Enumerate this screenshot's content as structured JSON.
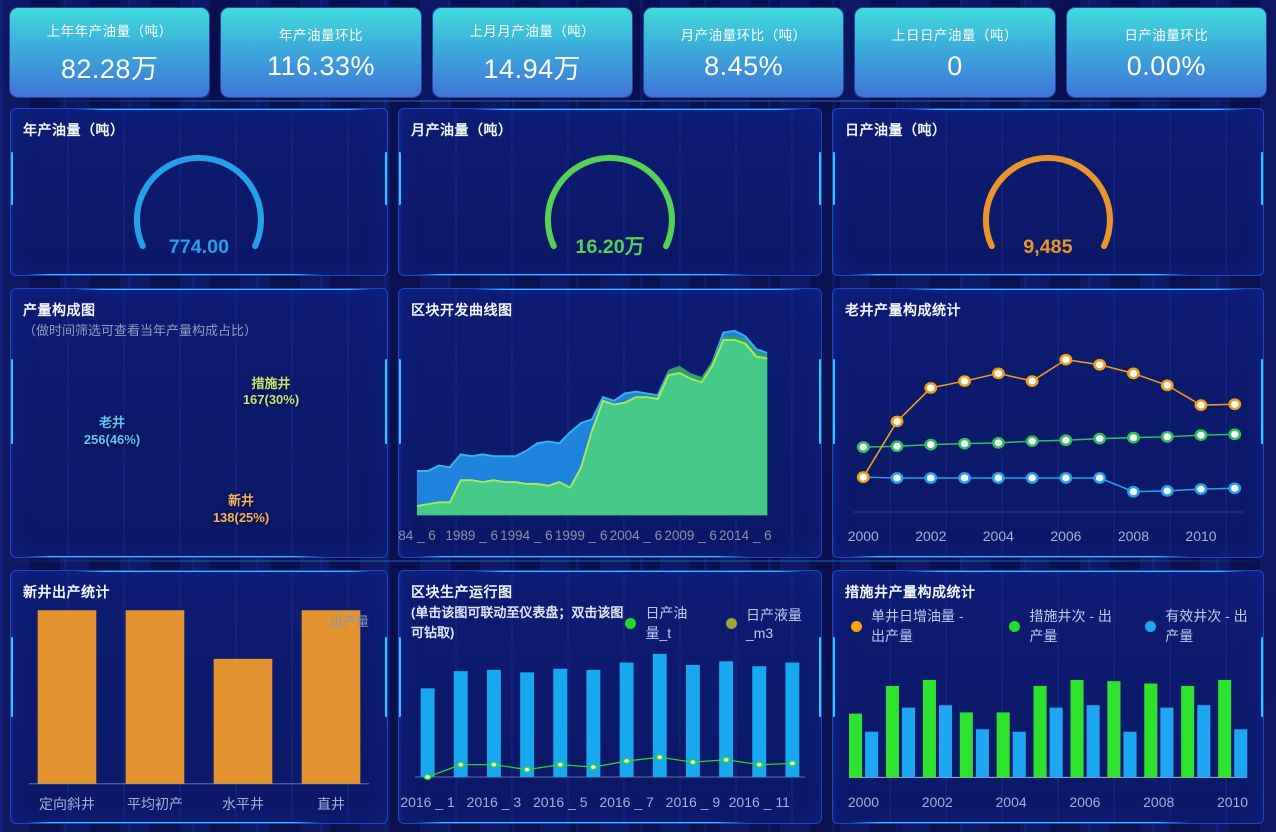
{
  "accent_colors": {
    "panel_border": "#1c49c0",
    "panel_glow": "#2fc3ff",
    "kpi_top": "#40dbda",
    "kpi_bottom": "#3e74d8"
  },
  "kpis": [
    {
      "label": "上年年产油量（吨）",
      "value": "82.28万"
    },
    {
      "label": "年产油量环比",
      "value": "116.33%"
    },
    {
      "label": "上月月产油量（吨）",
      "value": "14.94万"
    },
    {
      "label": "月产油量环比（吨）",
      "value": "8.45%"
    },
    {
      "label": "上日日产油量（吨）",
      "value": "0"
    },
    {
      "label": "日产油量环比",
      "value": "0.00%"
    }
  ],
  "panels": {
    "year_gauge": {
      "title": "年产油量（吨）"
    },
    "month_gauge": {
      "title": "月产油量（吨）"
    },
    "day_gauge": {
      "title": "日产油量（吨）"
    },
    "composition": {
      "title": "产量构成图",
      "subtitle": "（做时间筛选可查看当年产量构成占比）"
    },
    "block_curve": {
      "title": "区块开发曲线图"
    },
    "oldwell": {
      "title": "老井产量构成统计"
    },
    "newwell": {
      "title": "新井出产统计",
      "legend": "出产量"
    },
    "block_run": {
      "title": "区块生产运行图",
      "subtitle": "(单击该图可联动至仪表盘；双击该图可钻取)",
      "legend": [
        {
          "label": "日产油量_t",
          "color": "#2bd62b"
        },
        {
          "label": "日产液量_m3",
          "color": "#9aa53a"
        }
      ]
    },
    "measures": {
      "title": "措施井产量构成统计",
      "legend": [
        {
          "label": "单井日增油量 - 出产量",
          "color": "#f5a60a"
        },
        {
          "label": "措施井次 - 出产量",
          "color": "#22dd22"
        },
        {
          "label": "有效井次 - 出产量",
          "color": "#1fa6f2"
        }
      ]
    }
  },
  "chart_data": [
    {
      "id": "year-gauge",
      "type": "gauge",
      "title": "年产油量（吨）",
      "value": "774.00",
      "color": "#259fe6"
    },
    {
      "id": "month-gauge",
      "type": "gauge",
      "title": "月产油量（吨）",
      "value": "16.20万",
      "color": "#55d155"
    },
    {
      "id": "day-gauge",
      "type": "gauge",
      "title": "日产油量（吨）",
      "value": "9,485",
      "color": "#e8952e"
    },
    {
      "id": "composition-donut",
      "type": "pie",
      "title": "产量构成图",
      "slices": [
        {
          "label": "措施井",
          "text": "167(30%)",
          "value": 167,
          "pct": 30,
          "color": "#8ab43f",
          "label_color": "#c6e37a"
        },
        {
          "label": "新井",
          "text": "138(25%)",
          "value": 138,
          "pct": 25,
          "color": "#e0882a",
          "label_color": "#f2b25e"
        },
        {
          "label": "老井",
          "text": "256(46%)",
          "value": 256,
          "pct": 46,
          "color": "#29a3e6",
          "label_color": "#5ec6f5"
        }
      ]
    },
    {
      "id": "block-curve",
      "type": "area",
      "title": "区块开发曲线图",
      "x_labels": [
        "84 _ 6",
        "1989 _ 6",
        "1994 _ 6",
        "1999 _ 6",
        "2004 _ 6",
        "2009 _ 6",
        "2014 _ 6"
      ],
      "label_step": 5,
      "ylim": [
        0,
        100
      ],
      "grid": false,
      "series": [
        {
          "name": "上层蓝色面积",
          "color": "#1d83dc",
          "line": "#36b3f0",
          "values": [
            24,
            24,
            27,
            26,
            33,
            32,
            33,
            32,
            32,
            32,
            35,
            39,
            40,
            39,
            45,
            50,
            52,
            64,
            62,
            66,
            67,
            66,
            65,
            78,
            80,
            76,
            73,
            83,
            99,
            100,
            97,
            90,
            88
          ]
        },
        {
          "name": "深绿面积",
          "color": "#2f9e72",
          "values": [
            5,
            6,
            7,
            7,
            19,
            19,
            18,
            19,
            18,
            18,
            17,
            17,
            16,
            18,
            15,
            26,
            46,
            62,
            60,
            62,
            65,
            65,
            64,
            79,
            81,
            77,
            75,
            84,
            97,
            97,
            96,
            89,
            87
          ]
        },
        {
          "name": "浅绿面积",
          "color": "#45c987",
          "line": "#a8e861",
          "values": [
            5,
            6,
            7,
            7,
            19,
            19,
            18,
            19,
            18,
            18,
            17,
            17,
            16,
            18,
            15,
            26,
            46,
            62,
            60,
            61,
            64,
            64,
            63,
            76,
            77,
            74,
            72,
            81,
            95,
            95,
            93,
            86,
            85
          ]
        }
      ]
    },
    {
      "id": "oldwell-line",
      "type": "line",
      "title": "老井产量构成统计",
      "categories": [
        2000,
        2001,
        2002,
        2003,
        2004,
        2005,
        2006,
        2007,
        2008,
        2009,
        2010,
        2011
      ],
      "x_labels": [
        "2000",
        "2002",
        "2004",
        "2006",
        "2008",
        "2010"
      ],
      "label_step": 2,
      "ylim": [
        0,
        100
      ],
      "grid": false,
      "series": [
        {
          "name": "蓝色系列",
          "color": "#25a3e8",
          "values": [
            16,
            15.5,
            15.5,
            15.5,
            15.5,
            15.5,
            15.5,
            15.5,
            7.5,
            8,
            9,
            9.5
          ]
        },
        {
          "name": "绿色系列",
          "color": "#2fc060",
          "values": [
            33.5,
            34,
            35,
            35.5,
            36,
            37,
            37.5,
            38.5,
            39,
            39.5,
            40.5,
            41
          ]
        },
        {
          "name": "黄色系列",
          "color": "#f0a018",
          "values": [
            16,
            48.5,
            68,
            72,
            76.5,
            72,
            84.5,
            81.5,
            76.5,
            69.5,
            58,
            58.5
          ]
        }
      ]
    },
    {
      "id": "newwell-bar",
      "type": "bar",
      "title": "新井出产统计",
      "legend": "出产量",
      "x_labels": [
        "定向斜井",
        "平均初产",
        "水平井",
        "直井"
      ],
      "label_step": 1,
      "values": [
        100,
        100,
        72,
        100
      ],
      "color": "#e2932f",
      "ylim": [
        0,
        100
      ]
    },
    {
      "id": "block-run",
      "type": "bar-line",
      "title": "区块生产运行图",
      "categories": [
        "2016_1",
        "2016_2",
        "2016_3",
        "2016_4",
        "2016_5",
        "2016_6",
        "2016_7",
        "2016_8",
        "2016_9",
        "2016_10",
        "2016_11",
        "2016_12"
      ],
      "x_labels": [
        "2016 _ 1",
        "2016 _ 3",
        "2016 _ 5",
        "2016 _ 7",
        "2016 _ 9",
        "2016 _ 11"
      ],
      "label_step": 2,
      "ylim": [
        0,
        100
      ],
      "bars": {
        "name": "日产油量_t",
        "color": "#18a8f0",
        "values": [
          72,
          86,
          87,
          85,
          88,
          87,
          93,
          100,
          91,
          94,
          90,
          93
        ]
      },
      "line": {
        "name": "日产液量_m3",
        "color": "#2fd42f",
        "values": [
          0,
          10,
          10,
          6,
          10,
          8,
          13,
          16,
          12,
          14,
          10,
          11
        ]
      }
    },
    {
      "id": "measures-bars",
      "type": "grouped-bar",
      "title": "措施井产量构成统计",
      "categories": [
        2000,
        2001,
        2002,
        2003,
        2004,
        2005,
        2006,
        2007,
        2008,
        2009,
        2010
      ],
      "x_labels": [
        "2000",
        "2002",
        "2004",
        "2006",
        "2008",
        "2010"
      ],
      "label_step": 2,
      "ylim": [
        0,
        100
      ],
      "series": [
        {
          "name": "措施井次 - 出产量",
          "color": "#2ee22e",
          "values": [
            53,
            76,
            81,
            54,
            54,
            76,
            81,
            80,
            78,
            76,
            81
          ]
        },
        {
          "name": "有效井次 - 出产量",
          "color": "#1fa6f2",
          "values": [
            38,
            58,
            60,
            40,
            38,
            58,
            60,
            38,
            58,
            60,
            40
          ]
        }
      ]
    }
  ]
}
